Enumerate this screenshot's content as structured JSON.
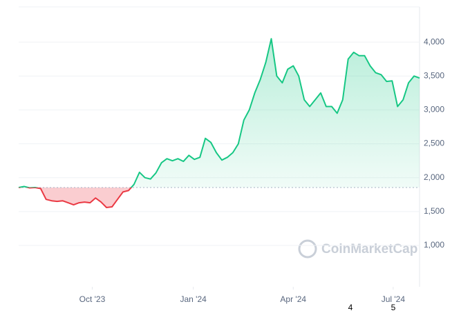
{
  "chart_data": {
    "type": "line",
    "values": [
      1855,
      1870,
      1850,
      1855,
      1840,
      1680,
      1660,
      1650,
      1660,
      1630,
      1600,
      1630,
      1640,
      1630,
      1700,
      1640,
      1560,
      1570,
      1680,
      1790,
      1810,
      1900,
      2080,
      2000,
      1980,
      2070,
      2220,
      2280,
      2250,
      2280,
      2240,
      2330,
      2270,
      2300,
      2580,
      2520,
      2370,
      2260,
      2300,
      2370,
      2500,
      2850,
      3000,
      3250,
      3450,
      3700,
      4050,
      3500,
      3400,
      3600,
      3650,
      3500,
      3150,
      3050,
      3150,
      3250,
      3050,
      3050,
      2950,
      3150,
      3750,
      3850,
      3800,
      3800,
      3650,
      3550,
      3520,
      3420,
      3430,
      3050,
      3150,
      3400,
      3500,
      3470
    ],
    "baseline": 1855,
    "up_color": "#16c784",
    "down_color": "#ea3943",
    "xlim": [
      0,
      73
    ],
    "xticks": [
      {
        "value": 13.4,
        "label": "Oct '23"
      },
      {
        "value": 31.8,
        "label": "Jan '24"
      },
      {
        "value": 50,
        "label": "Apr '24"
      },
      {
        "value": 68.2,
        "label": "Jul '24"
      }
    ],
    "ylim": [
      390,
      4520
    ],
    "yticks": [
      {
        "value": 1000,
        "label": "1,000"
      },
      {
        "value": 1500,
        "label": "1,500"
      },
      {
        "value": 2000,
        "label": "2,000"
      },
      {
        "value": 2500,
        "label": "2,500"
      },
      {
        "value": 3000,
        "label": "3,000"
      },
      {
        "value": 3500,
        "label": "3,500"
      },
      {
        "value": 4000,
        "label": "4,000"
      }
    ],
    "grid": true,
    "watermark": "CoinMarketCap",
    "extra_labels": [
      "4",
      "5"
    ]
  }
}
